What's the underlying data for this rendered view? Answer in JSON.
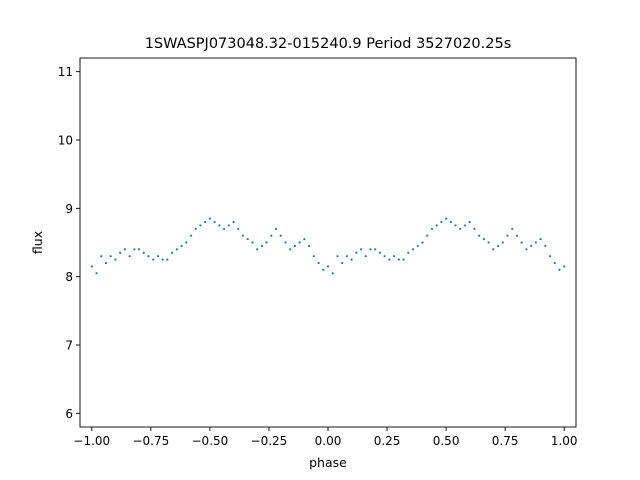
{
  "chart_data": {
    "type": "scatter",
    "title": "1SWASPJ073048.32-015240.9 Period 3527020.25s",
    "xlabel": "phase",
    "ylabel": "flux",
    "xlim": [
      -1.05,
      1.05
    ],
    "ylim": [
      5.8,
      11.2
    ],
    "xticks": [
      -1.0,
      -0.75,
      -0.5,
      -0.25,
      0.0,
      0.25,
      0.5,
      0.75,
      1.0
    ],
    "xtick_labels": [
      "−1.00",
      "−0.75",
      "−0.50",
      "−0.25",
      "0.00",
      "0.25",
      "0.50",
      "0.75",
      "1.00"
    ],
    "yticks": [
      6,
      7,
      8,
      9,
      10,
      11
    ],
    "ytick_labels": [
      "6",
      "7",
      "8",
      "9",
      "10",
      "11"
    ],
    "grid": false,
    "legend": "none",
    "marker_color": "#1f77b4",
    "series": [
      {
        "x": [
          -1.0,
          -0.98,
          -0.96,
          -0.94,
          -0.92,
          -0.9,
          -0.88,
          -0.86,
          -0.84,
          -0.82,
          -0.8,
          -0.78,
          -0.76,
          -0.74,
          -0.72,
          -0.7,
          -0.68,
          -0.66,
          -0.64,
          -0.62,
          -0.6,
          -0.58,
          -0.56,
          -0.54,
          -0.52,
          -0.5,
          -0.48,
          -0.46,
          -0.44,
          -0.42,
          -0.4,
          -0.38,
          -0.36,
          -0.34,
          -0.32,
          -0.3,
          -0.28,
          -0.26,
          -0.24,
          -0.22,
          -0.2,
          -0.18,
          -0.16,
          -0.14,
          -0.12,
          -0.1,
          -0.08,
          -0.06,
          -0.04,
          -0.02,
          0.0,
          0.02,
          0.04,
          0.06,
          0.08,
          0.1,
          0.12,
          0.14,
          0.16,
          0.18,
          0.2,
          0.22,
          0.24,
          0.26,
          0.28,
          0.3,
          0.32,
          0.34,
          0.36,
          0.38,
          0.4,
          0.42,
          0.44,
          0.46,
          0.48,
          0.5,
          0.52,
          0.54,
          0.56,
          0.58,
          0.6,
          0.62,
          0.64,
          0.66,
          0.68,
          0.7,
          0.72,
          0.74,
          0.76,
          0.78,
          0.8,
          0.82,
          0.84,
          0.86,
          0.88,
          0.9,
          0.92,
          0.94,
          0.96,
          0.98,
          1.0
        ],
        "y": [
          8.15,
          8.05,
          8.3,
          8.2,
          8.3,
          8.25,
          8.35,
          8.4,
          8.3,
          8.4,
          8.4,
          8.35,
          8.3,
          8.25,
          8.3,
          8.25,
          8.25,
          8.35,
          8.4,
          8.45,
          8.5,
          8.6,
          8.7,
          8.75,
          8.8,
          8.85,
          8.8,
          8.75,
          8.7,
          8.75,
          8.8,
          8.7,
          8.6,
          8.55,
          8.5,
          8.4,
          8.45,
          8.5,
          8.6,
          8.7,
          8.6,
          8.5,
          8.4,
          8.45,
          8.5,
          8.55,
          8.45,
          8.3,
          8.2,
          8.1,
          8.15,
          8.05,
          8.3,
          8.2,
          8.3,
          8.25,
          8.35,
          8.4,
          8.3,
          8.4,
          8.4,
          8.35,
          8.3,
          8.25,
          8.3,
          8.25,
          8.25,
          8.35,
          8.4,
          8.45,
          8.5,
          8.6,
          8.7,
          8.75,
          8.8,
          8.85,
          8.8,
          8.75,
          8.7,
          8.75,
          8.8,
          8.7,
          8.6,
          8.55,
          8.5,
          8.4,
          8.45,
          8.5,
          8.6,
          8.7,
          8.6,
          8.5,
          8.4,
          8.45,
          8.5,
          8.55,
          8.45,
          8.3,
          8.2,
          8.1,
          8.15
        ]
      }
    ]
  }
}
